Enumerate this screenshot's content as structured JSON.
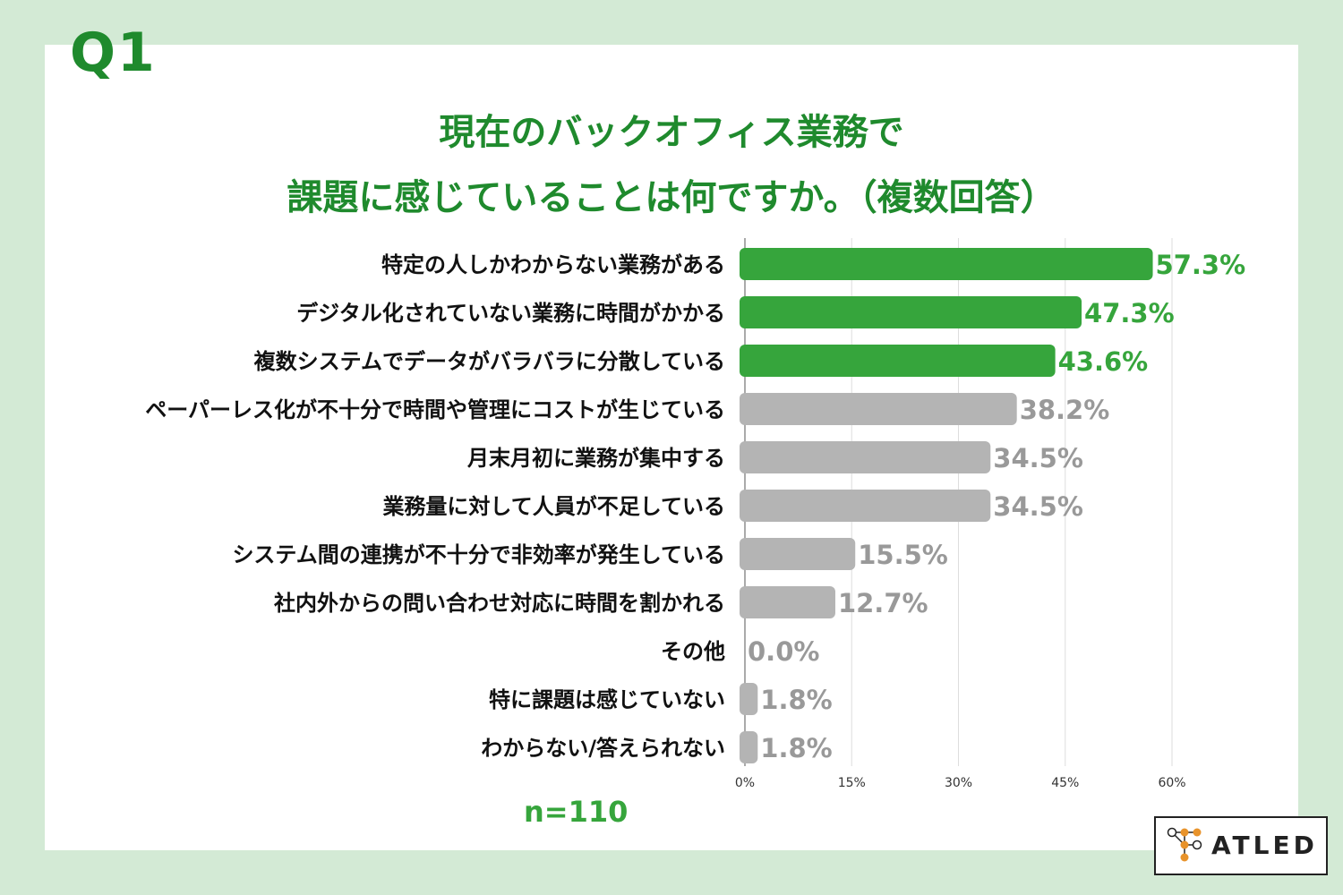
{
  "question_label": "Q1",
  "title_line1": "現在のバックオフィス業務で",
  "title_line2": "課題に感じていることは何ですか。（複数回答）",
  "sample_size": "n=110",
  "logo_text": "ATLED",
  "colors": {
    "background": "#d3ead5",
    "title": "#1f8a2d",
    "highlight_bar": "#36a53c",
    "other_bar": "#b4b4b4",
    "highlight_label": "#36a53c",
    "other_label": "#999999",
    "logo_accent": "#e8932b"
  },
  "chart_data": {
    "type": "bar",
    "orientation": "horizontal",
    "categories": [
      "特定の人しかわからない業務がある",
      "デジタル化されていない業務に時間がかかる",
      "複数システムでデータがバラバラに分散している",
      "ペーパーレス化が不十分で時間や管理にコストが生じている",
      "月末月初に業務が集中する",
      "業務量に対して人員が不足している",
      "システム間の連携が不十分で非効率が発生している",
      "社内外からの問い合わせ対応に時間を割かれる",
      "その他",
      "特に課題は感じていない",
      "わからない/答えられない"
    ],
    "values": [
      57.3,
      47.3,
      43.6,
      38.2,
      34.5,
      34.5,
      15.5,
      12.7,
      0.0,
      1.8,
      1.8
    ],
    "value_labels": [
      "57.3%",
      "47.3%",
      "43.6%",
      "38.2%",
      "34.5%",
      "34.5%",
      "15.5%",
      "12.7%",
      "0.0%",
      "1.8%",
      "1.8%"
    ],
    "highlighted": [
      true,
      true,
      true,
      false,
      false,
      false,
      false,
      false,
      false,
      false,
      false
    ],
    "xlim": [
      0,
      60
    ],
    "xticks": [
      0,
      15,
      30,
      45,
      60
    ],
    "xtick_labels": [
      "0%",
      "15%",
      "30%",
      "45%",
      "60%"
    ],
    "grid": true
  }
}
